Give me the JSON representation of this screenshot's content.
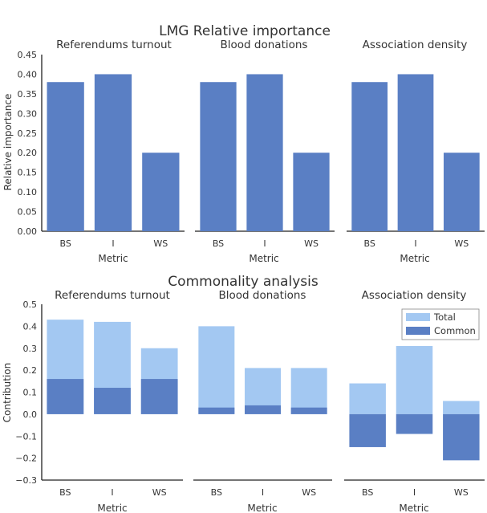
{
  "colors": {
    "primary": "#5a7fc4",
    "total": "#a3c8f2",
    "axis": "#222222",
    "text": "#333333"
  },
  "chart_data": [
    {
      "type": "bar",
      "title": "LMG Relative importance",
      "ylabel": "Relative importance",
      "ylim": [
        0,
        0.45
      ],
      "yticks": [
        "0.00",
        "0.05",
        "0.10",
        "0.15",
        "0.20",
        "0.25",
        "0.30",
        "0.35",
        "0.40",
        "0.45"
      ],
      "xlabel": "Metric",
      "categories": [
        "BS",
        "I",
        "WS"
      ],
      "panels": [
        {
          "title": "Referendums turnout",
          "values": [
            0.38,
            0.4,
            0.2
          ]
        },
        {
          "title": "Blood donations",
          "values": [
            0.38,
            0.4,
            0.2
          ]
        },
        {
          "title": "Association density",
          "values": [
            0.38,
            0.4,
            0.2
          ]
        }
      ]
    },
    {
      "type": "bar",
      "title": "Commonality analysis",
      "ylabel": "Contribution",
      "ylim": [
        -0.3,
        0.5
      ],
      "yticks": [
        "−0.3",
        "−0.2",
        "−0.1",
        "0.0",
        "0.1",
        "0.2",
        "0.3",
        "0.4",
        "0.5"
      ],
      "xlabel": "Metric",
      "categories": [
        "BS",
        "I",
        "WS"
      ],
      "legend": {
        "position": "top-right",
        "entries": [
          "Total",
          "Common"
        ]
      },
      "panels": [
        {
          "title": "Referendums turnout",
          "series": [
            {
              "name": "Total",
              "values": [
                0.43,
                0.42,
                0.3
              ]
            },
            {
              "name": "Common",
              "values": [
                0.16,
                0.12,
                0.16
              ]
            }
          ]
        },
        {
          "title": "Blood donations",
          "series": [
            {
              "name": "Total",
              "values": [
                0.4,
                0.21,
                0.21
              ]
            },
            {
              "name": "Common",
              "values": [
                0.03,
                0.04,
                0.03
              ]
            }
          ]
        },
        {
          "title": "Association density",
          "series": [
            {
              "name": "Total",
              "values": [
                0.14,
                0.31,
                0.06
              ]
            },
            {
              "name": "Common",
              "values": [
                -0.15,
                -0.09,
                -0.21
              ]
            }
          ]
        }
      ]
    }
  ]
}
